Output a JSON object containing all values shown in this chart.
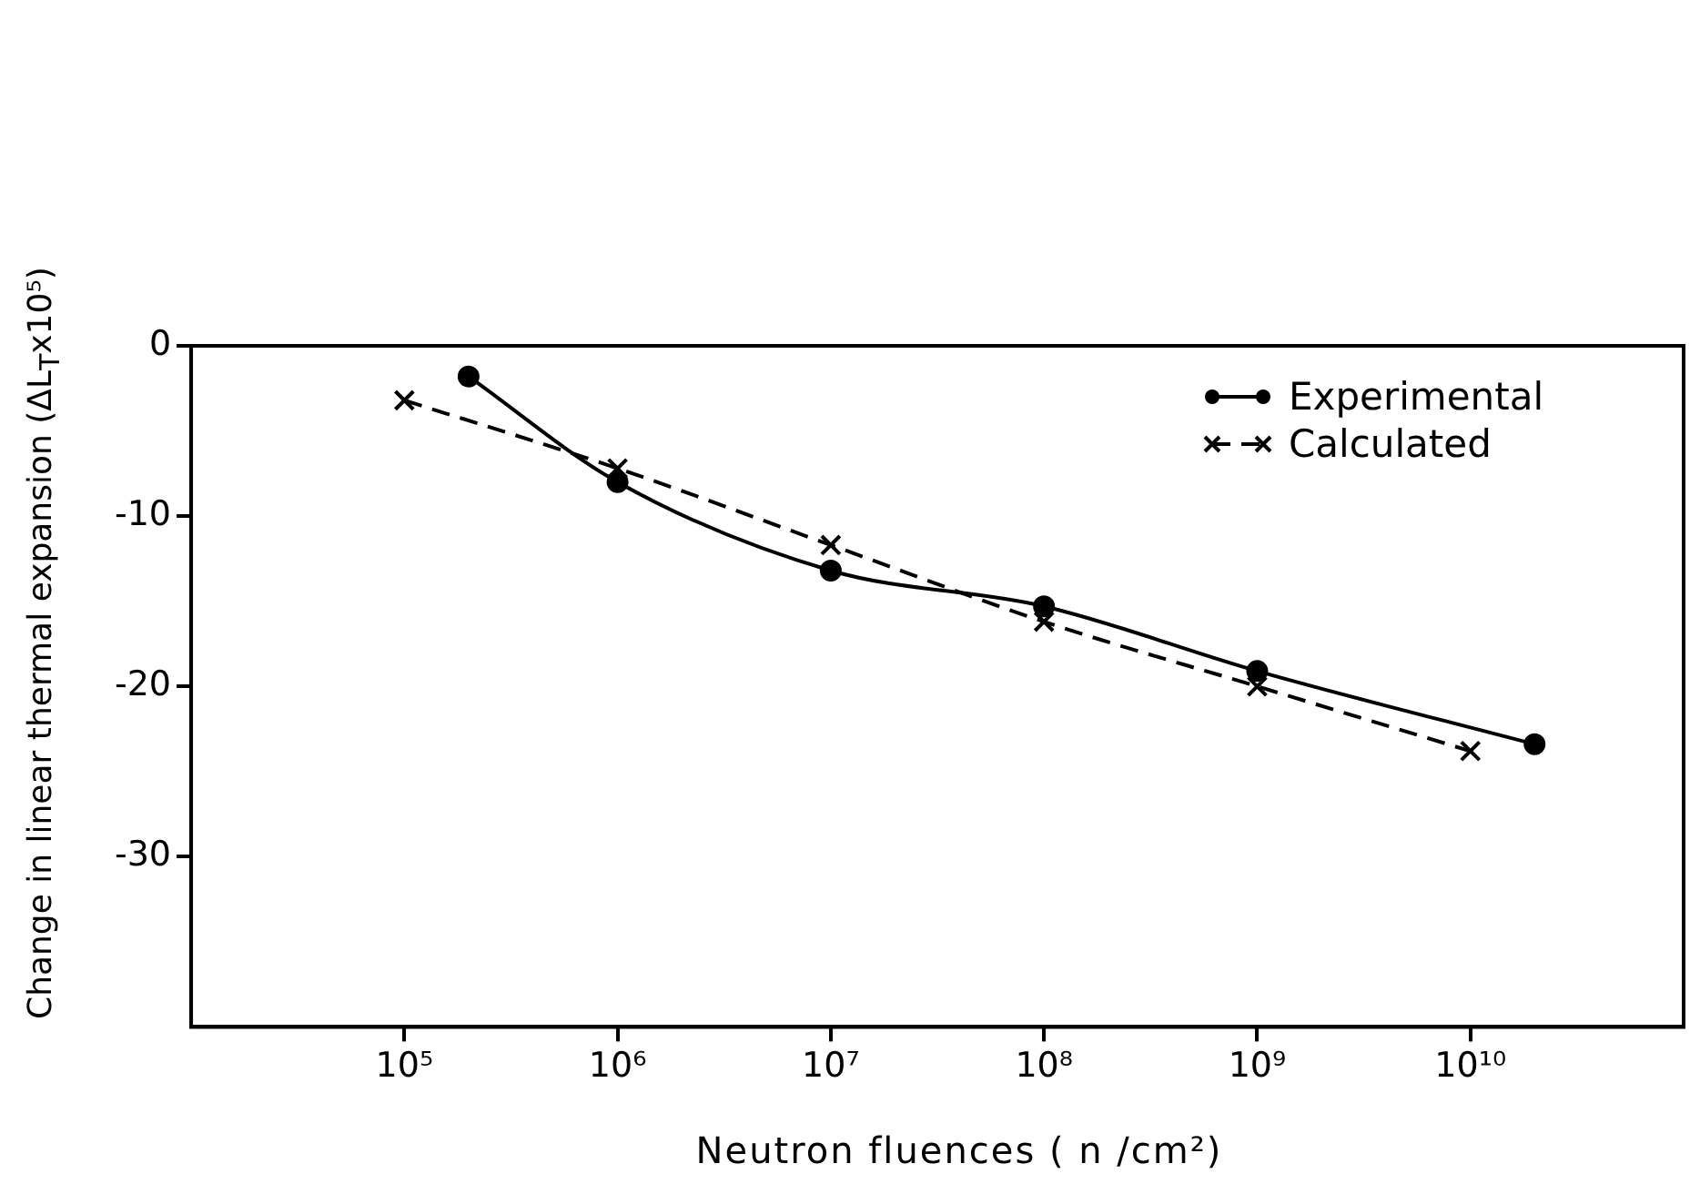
{
  "chart_data": {
    "type": "line",
    "xlabel": "Neutron fluences ( n /cm²)",
    "ylabel": "Change in linear thermal expansion (ΔL$_{T}$x10⁵)",
    "log": "x",
    "xlim": [
      10000,
      100000000000
    ],
    "xticks": [
      {
        "value": 100000,
        "label": "10⁵"
      },
      {
        "value": 1000000,
        "label": "10⁶"
      },
      {
        "value": 10000000,
        "label": "10⁷"
      },
      {
        "value": 100000000,
        "label": "10⁸"
      },
      {
        "value": 1000000000,
        "label": "10⁹"
      },
      {
        "value": 10000000000,
        "label": "10¹⁰"
      }
    ],
    "ylim": [
      -40,
      0
    ],
    "yticks": [
      0,
      -10,
      -20,
      -30
    ],
    "grid": false,
    "legend": "top right",
    "series": [
      {
        "name": "Experimental",
        "color": "#000000",
        "marker": "circle",
        "line_style": "solid",
        "x": [
          200000,
          1000000,
          10000000,
          100000000,
          1000000000,
          20000000000
        ],
        "values": [
          -1.8,
          -8.0,
          -13.2,
          -15.3,
          -19.1,
          -23.4
        ]
      },
      {
        "name": "Calculated",
        "color": "#000000",
        "marker": "cross",
        "line_style": "dashed",
        "x": [
          100000,
          1000000,
          10000000,
          100000000,
          1000000000,
          10000000000
        ],
        "values": [
          -3.2,
          -7.2,
          -11.7,
          -16.2,
          -20.0,
          -23.8
        ]
      }
    ]
  }
}
